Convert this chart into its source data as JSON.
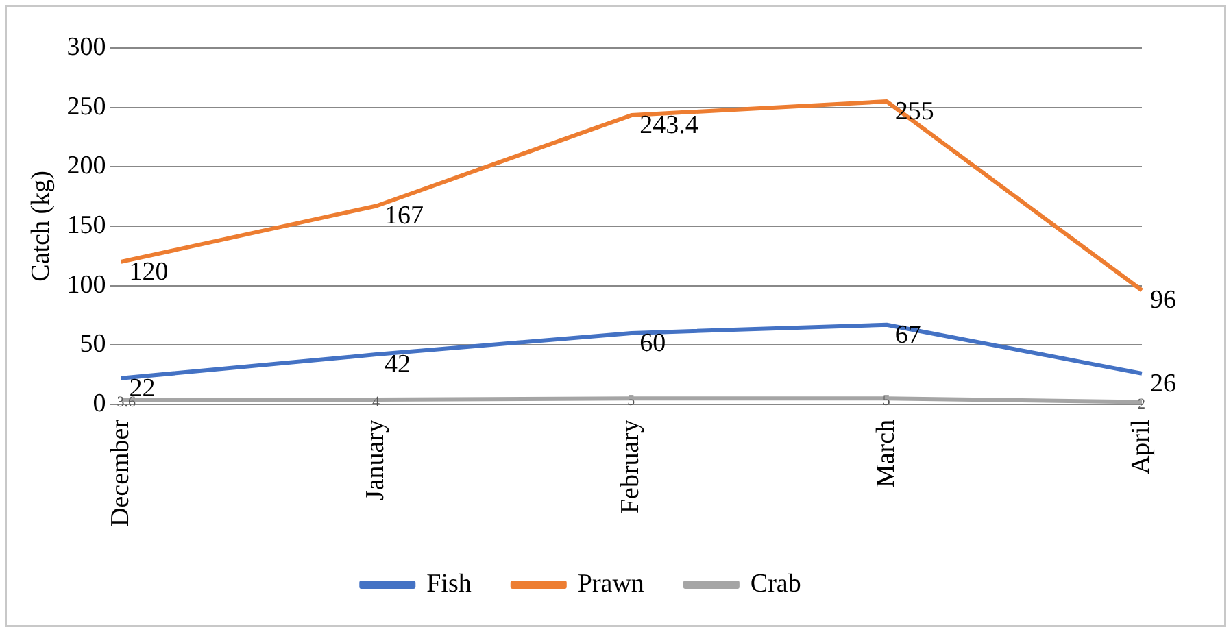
{
  "chart_data": {
    "type": "line",
    "ylabel": "Catch (kg)",
    "categories": [
      "December",
      "January",
      "February",
      "March",
      "April"
    ],
    "series": [
      {
        "name": "Fish",
        "color": "#4472c4",
        "values": [
          22,
          42,
          60,
          67,
          26
        ]
      },
      {
        "name": "Prawn",
        "color": "#ed7d31",
        "values": [
          120,
          167,
          243.4,
          255,
          96
        ]
      },
      {
        "name": "Crab",
        "color": "#a5a5a5",
        "values": [
          3.6,
          4,
          5,
          5,
          2
        ]
      }
    ],
    "ylim": [
      0,
      300
    ],
    "yticks": [
      0,
      50,
      100,
      150,
      200,
      250,
      300
    ],
    "grid": "y",
    "legend": "bottom",
    "data_labels": true,
    "marker": "none"
  }
}
